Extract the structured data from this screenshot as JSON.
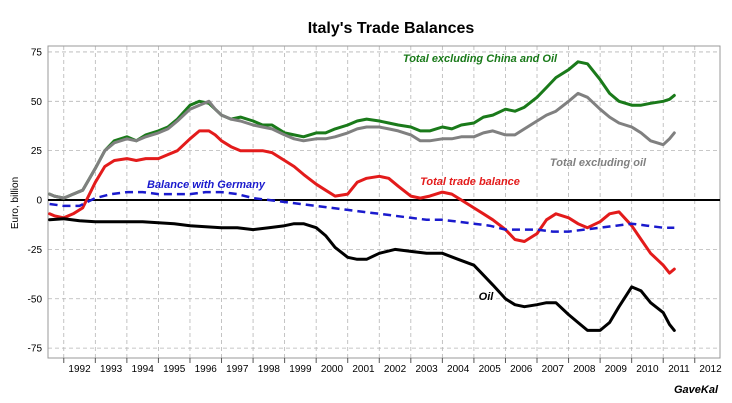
{
  "chart_data": {
    "type": "line",
    "title": "Italy's Trade Balances",
    "ylabel": "Euro, billion",
    "xlabel": "",
    "ylim": [
      -80,
      78
    ],
    "xlim": [
      1991.5,
      2012.8
    ],
    "yticks": [
      75,
      50,
      25,
      0,
      -25,
      -50,
      -75
    ],
    "xticks": [
      "1992",
      "1993",
      "1994",
      "1995",
      "1996",
      "1997",
      "1998",
      "1999",
      "2000",
      "2001",
      "2002",
      "2003",
      "2004",
      "2005",
      "2006",
      "2007",
      "2008",
      "2009",
      "2010",
      "2011",
      "2012"
    ],
    "grid": true,
    "source": "GaveKal",
    "series": [
      {
        "name": "Total excluding China and Oil",
        "color": "#1a7a1a",
        "dash": "solid",
        "x": [
          1991.55,
          1991.7,
          1992.0,
          1992.3,
          1992.6,
          1993.0,
          1993.3,
          1993.6,
          1994.0,
          1994.3,
          1994.6,
          1995.0,
          1995.3,
          1995.6,
          1996.0,
          1996.3,
          1996.6,
          1996.8,
          1997.0,
          1997.3,
          1997.6,
          1998.0,
          1998.3,
          1998.6,
          1999.0,
          1999.3,
          1999.6,
          2000.0,
          2000.3,
          2000.6,
          2001.0,
          2001.3,
          2001.6,
          2002.0,
          2002.3,
          2002.6,
          2003.0,
          2003.3,
          2003.6,
          2004.0,
          2004.3,
          2004.6,
          2005.0,
          2005.3,
          2005.6,
          2006.0,
          2006.3,
          2006.6,
          2007.0,
          2007.3,
          2007.6,
          2008.0,
          2008.3,
          2008.6,
          2009.0,
          2009.3,
          2009.6,
          2010.0,
          2010.3,
          2010.6,
          2011.0,
          2011.2,
          2011.35
        ],
        "values": [
          3,
          2,
          1,
          3,
          5,
          16,
          25,
          30,
          32,
          30,
          33,
          35,
          37,
          41,
          48,
          50,
          49,
          46,
          43,
          41,
          42,
          40,
          38,
          38,
          34,
          33,
          32,
          34,
          34,
          36,
          38,
          40,
          41,
          40,
          39,
          38,
          37,
          35,
          35,
          37,
          36,
          38,
          39,
          42,
          43,
          46,
          45,
          47,
          52,
          57,
          62,
          66,
          70,
          69,
          61,
          54,
          50,
          48,
          48,
          49,
          50,
          51,
          53
        ]
      },
      {
        "name": "Total excluding oil",
        "color": "#808080",
        "dash": "solid",
        "x": [
          1991.55,
          1991.7,
          1992.0,
          1992.3,
          1992.6,
          1993.0,
          1993.3,
          1993.6,
          1994.0,
          1994.3,
          1994.6,
          1995.0,
          1995.3,
          1995.6,
          1996.0,
          1996.3,
          1996.6,
          1996.8,
          1997.0,
          1997.3,
          1997.6,
          1998.0,
          1998.3,
          1998.6,
          1999.0,
          1999.3,
          1999.6,
          2000.0,
          2000.3,
          2000.6,
          2001.0,
          2001.3,
          2001.6,
          2002.0,
          2002.3,
          2002.6,
          2003.0,
          2003.3,
          2003.6,
          2004.0,
          2004.3,
          2004.6,
          2005.0,
          2005.3,
          2005.6,
          2006.0,
          2006.3,
          2006.6,
          2007.0,
          2007.3,
          2007.6,
          2008.0,
          2008.3,
          2008.6,
          2009.0,
          2009.3,
          2009.6,
          2010.0,
          2010.3,
          2010.6,
          2011.0,
          2011.2,
          2011.35
        ],
        "values": [
          3,
          2,
          1,
          3,
          5,
          16,
          25,
          29,
          31,
          30,
          32,
          34,
          36,
          40,
          46,
          48,
          50,
          46,
          43,
          41,
          40,
          38,
          37,
          36,
          33,
          31,
          30,
          31,
          31,
          32,
          34,
          36,
          37,
          37,
          36,
          35,
          33,
          30,
          30,
          31,
          31,
          32,
          32,
          34,
          35,
          33,
          33,
          36,
          40,
          43,
          45,
          50,
          54,
          52,
          46,
          42,
          39,
          37,
          34,
          30,
          28,
          31,
          34
        ]
      },
      {
        "name": "Total trade balance",
        "color": "#e31b1b",
        "dash": "solid",
        "x": [
          1991.55,
          1991.7,
          1992.0,
          1992.3,
          1992.6,
          1993.0,
          1993.3,
          1993.6,
          1994.0,
          1994.3,
          1994.6,
          1995.0,
          1995.3,
          1995.6,
          1996.0,
          1996.3,
          1996.6,
          1996.8,
          1997.0,
          1997.3,
          1997.6,
          1998.0,
          1998.3,
          1998.6,
          1999.0,
          1999.3,
          1999.6,
          2000.0,
          2000.3,
          2000.6,
          2001.0,
          2001.3,
          2001.6,
          2002.0,
          2002.3,
          2002.6,
          2003.0,
          2003.3,
          2003.6,
          2004.0,
          2004.3,
          2004.6,
          2005.0,
          2005.3,
          2005.6,
          2006.0,
          2006.3,
          2006.6,
          2007.0,
          2007.3,
          2007.6,
          2008.0,
          2008.3,
          2008.6,
          2009.0,
          2009.3,
          2009.6,
          2010.0,
          2010.3,
          2010.6,
          2011.0,
          2011.2,
          2011.35
        ],
        "values": [
          -7,
          -8,
          -9,
          -7,
          -4,
          9,
          17,
          20,
          21,
          20,
          21,
          21,
          23,
          25,
          31,
          35,
          35,
          33,
          30,
          27,
          25,
          25,
          25,
          24,
          20,
          17,
          13,
          8,
          5,
          2,
          3,
          9,
          11,
          12,
          11,
          7,
          2,
          1,
          2,
          4,
          3,
          0,
          -4,
          -7,
          -10,
          -15,
          -20,
          -21,
          -17,
          -10,
          -7,
          -9,
          -12,
          -14,
          -11,
          -7,
          -6,
          -13,
          -20,
          -27,
          -33,
          -37,
          -35
        ]
      },
      {
        "name": "Balance with Germany",
        "color": "#1a1acd",
        "dash": "dashed",
        "x": [
          1991.55,
          1992.0,
          1992.5,
          1993.0,
          1993.5,
          1994.0,
          1994.5,
          1995.0,
          1995.5,
          1996.0,
          1996.5,
          1997.0,
          1997.5,
          1998.0,
          1998.5,
          1999.0,
          1999.5,
          2000.0,
          2000.5,
          2001.0,
          2001.5,
          2002.0,
          2002.5,
          2003.0,
          2003.5,
          2004.0,
          2004.5,
          2005.0,
          2005.5,
          2006.0,
          2006.5,
          2007.0,
          2007.5,
          2008.0,
          2008.5,
          2009.0,
          2009.5,
          2010.0,
          2010.5,
          2011.0,
          2011.35
        ],
        "values": [
          -2,
          -3,
          -3,
          1,
          3,
          4,
          4,
          3,
          3,
          3,
          4,
          4,
          3,
          1,
          0,
          -1,
          -2,
          -3,
          -4,
          -5,
          -6,
          -7,
          -8,
          -9,
          -10,
          -10,
          -11,
          -12,
          -13,
          -15,
          -15,
          -15,
          -16,
          -16,
          -15,
          -14,
          -13,
          -12,
          -13,
          -14,
          -14
        ]
      },
      {
        "name": "Oil",
        "color": "#000000",
        "dash": "solid",
        "x": [
          1991.55,
          1992.0,
          1992.5,
          1993.0,
          1993.5,
          1994.0,
          1994.5,
          1995.0,
          1995.5,
          1996.0,
          1996.5,
          1997.0,
          1997.5,
          1998.0,
          1998.5,
          1999.0,
          1999.3,
          1999.6,
          2000.0,
          2000.3,
          2000.6,
          2001.0,
          2001.3,
          2001.6,
          2002.0,
          2002.5,
          2003.0,
          2003.5,
          2004.0,
          2004.5,
          2005.0,
          2005.3,
          2005.6,
          2006.0,
          2006.3,
          2006.6,
          2007.0,
          2007.3,
          2007.6,
          2008.0,
          2008.3,
          2008.6,
          2009.0,
          2009.3,
          2009.6,
          2010.0,
          2010.3,
          2010.6,
          2011.0,
          2011.2,
          2011.35
        ],
        "values": [
          -10,
          -9.5,
          -10.5,
          -11,
          -11,
          -11,
          -11,
          -11.5,
          -12,
          -13,
          -13.5,
          -14,
          -14,
          -15,
          -14,
          -13,
          -12,
          -12,
          -14,
          -18,
          -24,
          -29,
          -30,
          -30,
          -27,
          -25,
          -26,
          -27,
          -27,
          -30,
          -33,
          -38,
          -43,
          -50,
          -53,
          -54,
          -53,
          -52,
          -52,
          -58,
          -62,
          -66,
          -66,
          -62,
          -54,
          -44,
          -46,
          -52,
          -57,
          -63,
          -66
        ]
      }
    ],
    "annotations": [
      {
        "text": "Total excluding China and Oil",
        "color": "#1a7a1a"
      },
      {
        "text": "Total excluding oil",
        "color": "#808080"
      },
      {
        "text": "Balance with Germany",
        "color": "#1a1acd"
      },
      {
        "text": "Total trade balance",
        "color": "#e31b1b"
      },
      {
        "text": "Oil",
        "color": "#000000"
      }
    ]
  }
}
